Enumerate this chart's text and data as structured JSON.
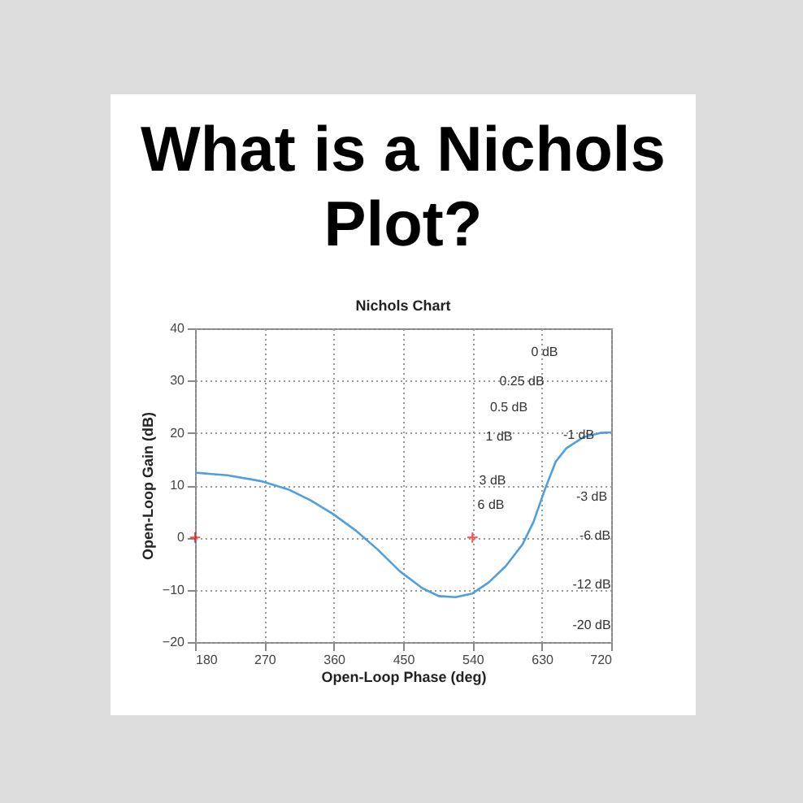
{
  "chart_data": {
    "type": "line",
    "title": "What is a Nichols Plot?",
    "subtitle": "Nichols Chart",
    "xlabel": "Open-Loop Phase (deg)",
    "ylabel": "Open-Loop Gain (dB)",
    "xlim": [
      180,
      720
    ],
    "xticks": [
      180,
      270,
      360,
      450,
      540,
      630,
      720
    ],
    "ylim": [
      -20,
      40
    ],
    "yticks": [
      -20,
      -10,
      0,
      10,
      20,
      30,
      40
    ],
    "grid": true,
    "series": [
      {
        "color": "#4f9fdf",
        "x": [
          180,
          222,
          265,
          301,
          330,
          359,
          388,
          417,
          446,
          475,
          496,
          518,
          540,
          561,
          583,
          605,
          619,
          634,
          648,
          662,
          684,
          706,
          720
        ],
        "values": [
          12.4,
          11.9,
          10.8,
          9.2,
          7.1,
          4.5,
          1.4,
          -2.3,
          -6.5,
          -9.7,
          -11.2,
          -11.4,
          -10.7,
          -8.6,
          -5.5,
          -1.3,
          2.9,
          9.2,
          14.5,
          17.1,
          19.2,
          20.0,
          20.1
        ]
      },
      {
        "type": "scatter",
        "color": "#ff0000",
        "marker": "cross",
        "x": [
          180,
          540
        ],
        "values": [
          0,
          0
        ]
      }
    ],
    "annotations": [
      "0 dB",
      "0.25 dB",
      "0.5 dB",
      "1 dB",
      "3 dB",
      "6 dB",
      "-1 dB",
      "-3 dB",
      "-6 dB",
      "-12 dB",
      "-20 dB"
    ]
  }
}
